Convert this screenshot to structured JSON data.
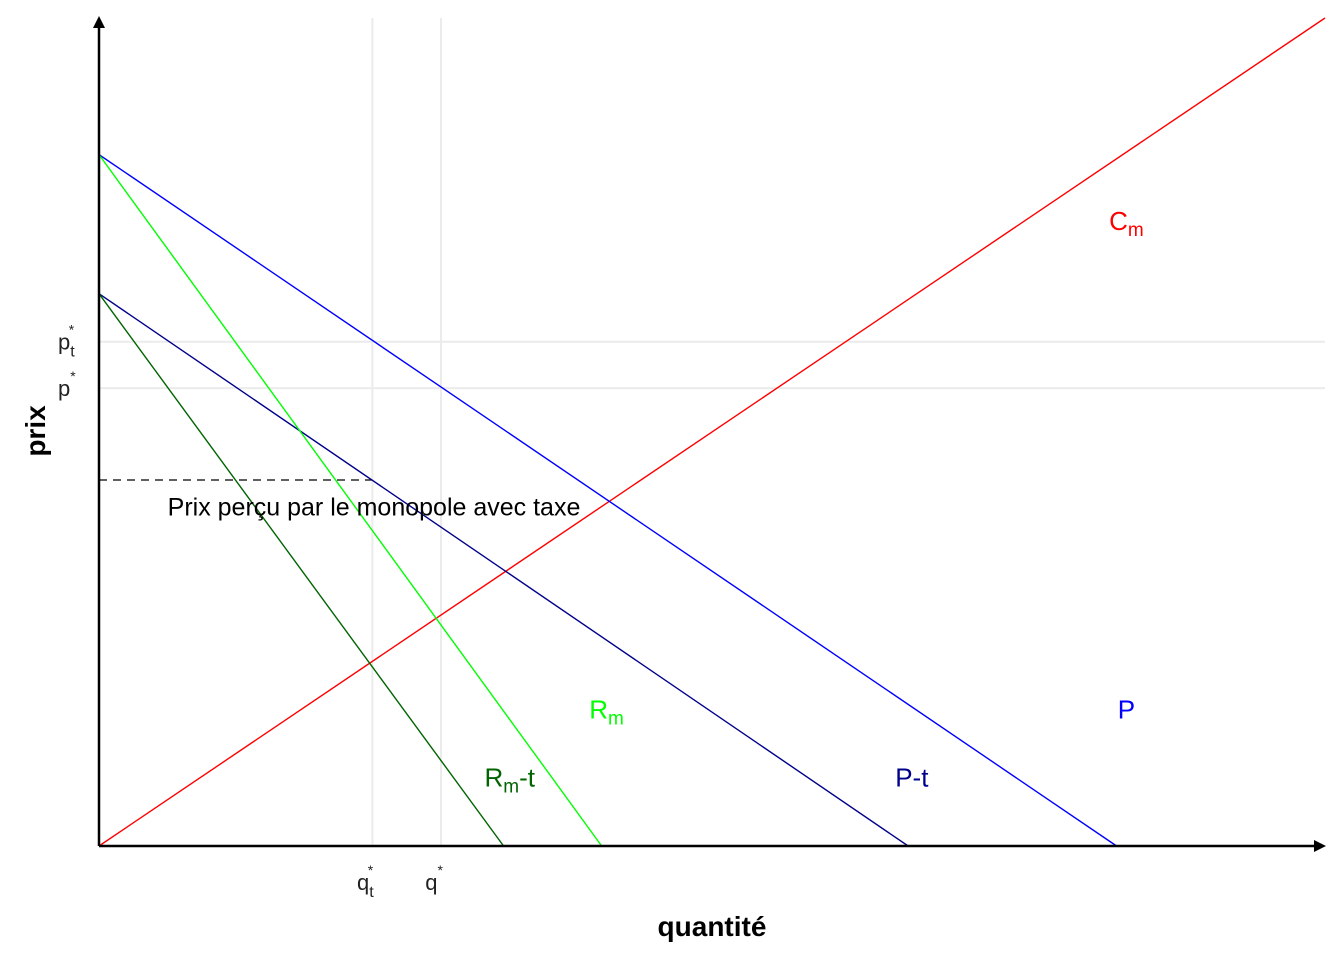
{
  "chart_data": {
    "type": "line",
    "xlabel": "quantité",
    "ylabel": "prix",
    "xlim": [
      0,
      100
    ],
    "ylim": [
      0,
      100
    ],
    "grid": "partial",
    "x_ticks": [
      {
        "value": 22.3,
        "base": "q",
        "sub": "t",
        "sup": "*"
      },
      {
        "value": 27.9,
        "base": "q",
        "sub": "",
        "sup": "*"
      }
    ],
    "y_ticks": [
      {
        "value": 60.9,
        "base": "p",
        "sub": "t",
        "sup": "*"
      },
      {
        "value": 55.3,
        "base": "p",
        "sub": "",
        "sup": "*"
      }
    ],
    "series": [
      {
        "name": "Cm",
        "label_base": "C",
        "label_sub": "m",
        "label_suffix": "",
        "color": "#ff0000",
        "x": [
          0,
          100
        ],
        "y": [
          0,
          100
        ],
        "label_at": [
          83.8,
          75.5
        ]
      },
      {
        "name": "P",
        "label_base": "P",
        "label_sub": "",
        "label_suffix": "",
        "color": "#0000ff",
        "x": [
          0,
          83.0
        ],
        "y": [
          83.5,
          0
        ],
        "label_at": [
          83.8,
          16.5
        ]
      },
      {
        "name": "P-t",
        "label_base": "P-t",
        "label_sub": "",
        "label_suffix": "",
        "color": "#00008b",
        "x": [
          0,
          66.0
        ],
        "y": [
          66.7,
          0
        ],
        "label_at": [
          66.3,
          8.3
        ]
      },
      {
        "name": "Rm",
        "label_base": "R",
        "label_sub": "m",
        "label_suffix": "",
        "color": "#00ff00",
        "x": [
          0,
          41.0
        ],
        "y": [
          83.5,
          0
        ],
        "label_at": [
          41.4,
          16.5
        ]
      },
      {
        "name": "Rm-t",
        "label_base": "R",
        "label_sub": "m",
        "label_suffix": "-t",
        "color": "#006400",
        "x": [
          0,
          33.0
        ],
        "y": [
          66.7,
          0
        ],
        "label_at": [
          33.5,
          8.3
        ]
      }
    ],
    "reference_lines": {
      "vertical": [
        22.3,
        27.9
      ],
      "horizontal": [
        60.9,
        55.3
      ],
      "dashed_horizontal": {
        "y": 44.2,
        "x_from": 0,
        "x_to": 22.3
      }
    },
    "annotations": [
      {
        "text": "Prix perçu par le monopole avec taxe",
        "x": 5.6,
        "y": 41.0
      }
    ]
  }
}
